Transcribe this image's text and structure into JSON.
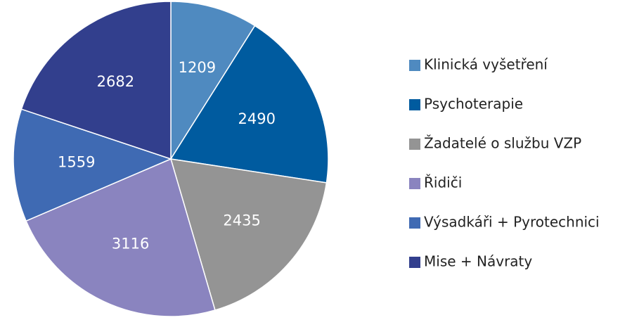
{
  "chart_data": {
    "type": "pie",
    "categories": [
      "Klinická vyšetření",
      "Psychoterapie",
      "Žadatelé o službu VZP",
      "Řidiči",
      "Výsadkáři + Pyrotechnici",
      "Mise + Návraty"
    ],
    "values": [
      1209,
      2490,
      2435,
      3116,
      1559,
      2682
    ],
    "colors": [
      "#4f8ac0",
      "#005b9f",
      "#949494",
      "#8a84bf",
      "#3f6ab3",
      "#323f8d"
    ],
    "legend": "right"
  }
}
